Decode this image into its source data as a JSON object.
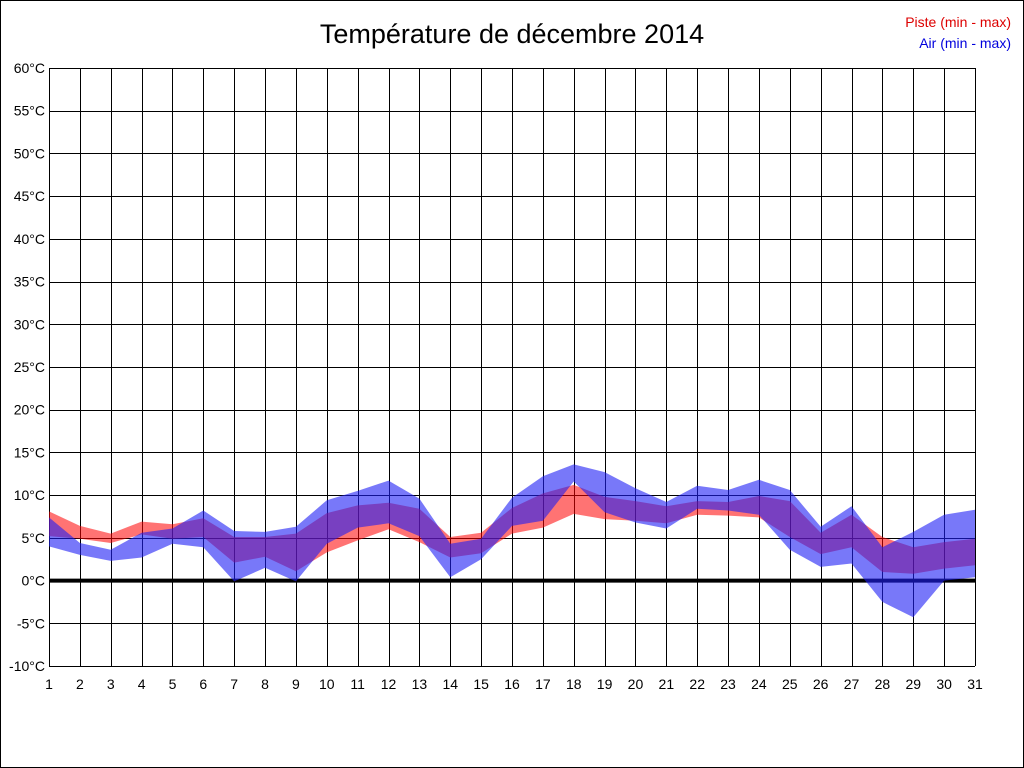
{
  "chart_data": {
    "type": "area",
    "title": "Température de décembre 2014",
    "x": [
      1,
      2,
      3,
      4,
      5,
      6,
      7,
      8,
      9,
      10,
      11,
      12,
      13,
      14,
      15,
      16,
      17,
      18,
      19,
      20,
      21,
      22,
      23,
      24,
      25,
      26,
      27,
      28,
      29,
      30,
      31
    ],
    "xtick_labels": [
      "1",
      "2",
      "3",
      "4",
      "5",
      "6",
      "7",
      "8",
      "9",
      "10",
      "11",
      "12",
      "13",
      "14",
      "15",
      "16",
      "17",
      "18",
      "19",
      "20",
      "21",
      "22",
      "23",
      "24",
      "25",
      "26",
      "27",
      "28",
      "29",
      "30",
      "31"
    ],
    "ylim": [
      -10,
      60
    ],
    "ytick_values": [
      60,
      55,
      50,
      45,
      40,
      35,
      30,
      25,
      20,
      15,
      10,
      5,
      0,
      -5,
      -10
    ],
    "ytick_labels": [
      "60°C",
      "55°C",
      "50°C",
      "45°C",
      "40°C",
      "35°C",
      "30°C",
      "25°C",
      "20°C",
      "15°C",
      "10°C",
      "5°C",
      "0°C",
      "-5°C",
      "-10°C"
    ],
    "grid": true,
    "grid_color": "#000000",
    "zero_line": true,
    "zero_line_color": "#000000",
    "legend_position": "top-right",
    "series": [
      {
        "name": "Piste (min - max)",
        "label_color": "#dd0000",
        "fill": "rgba(255,0,0,0.55)",
        "min": [
          5.2,
          4.9,
          4.4,
          5.4,
          4.9,
          5.1,
          2.1,
          2.8,
          1.1,
          3.3,
          4.7,
          6.0,
          4.5,
          2.7,
          3.2,
          5.5,
          6.2,
          7.8,
          7.2,
          7.0,
          6.7,
          7.7,
          7.6,
          7.4,
          5.1,
          3.1,
          3.9,
          1.0,
          0.8,
          1.4,
          1.8
        ],
        "max": [
          8.1,
          6.4,
          5.5,
          6.9,
          6.6,
          7.3,
          5.1,
          5.1,
          5.5,
          7.9,
          8.8,
          9.1,
          8.4,
          5.1,
          5.6,
          8.5,
          10.2,
          11.2,
          9.8,
          9.3,
          8.7,
          9.3,
          9.2,
          9.9,
          9.3,
          5.6,
          7.7,
          5.1,
          3.9,
          4.5,
          4.9
        ]
      },
      {
        "name": "Air (min - max)",
        "label_color": "#0000dd",
        "fill": "rgba(30,30,245,0.6)",
        "min": [
          4.0,
          3.0,
          2.3,
          2.7,
          4.3,
          3.9,
          -0.1,
          1.5,
          -0.1,
          4.3,
          6.2,
          6.7,
          5.2,
          0.4,
          2.5,
          6.4,
          7.0,
          11.6,
          8.0,
          6.8,
          6.1,
          8.4,
          8.2,
          7.7,
          3.6,
          1.6,
          2.0,
          -2.5,
          -4.3,
          0.0,
          0.4
        ],
        "max": [
          7.4,
          4.4,
          3.6,
          5.6,
          6.1,
          8.2,
          5.8,
          5.7,
          6.3,
          9.4,
          10.5,
          11.7,
          9.6,
          4.3,
          4.9,
          9.7,
          12.2,
          13.6,
          12.7,
          10.8,
          9.2,
          11.1,
          10.6,
          11.8,
          10.6,
          6.3,
          8.7,
          3.9,
          5.7,
          7.7,
          8.3
        ]
      }
    ]
  }
}
